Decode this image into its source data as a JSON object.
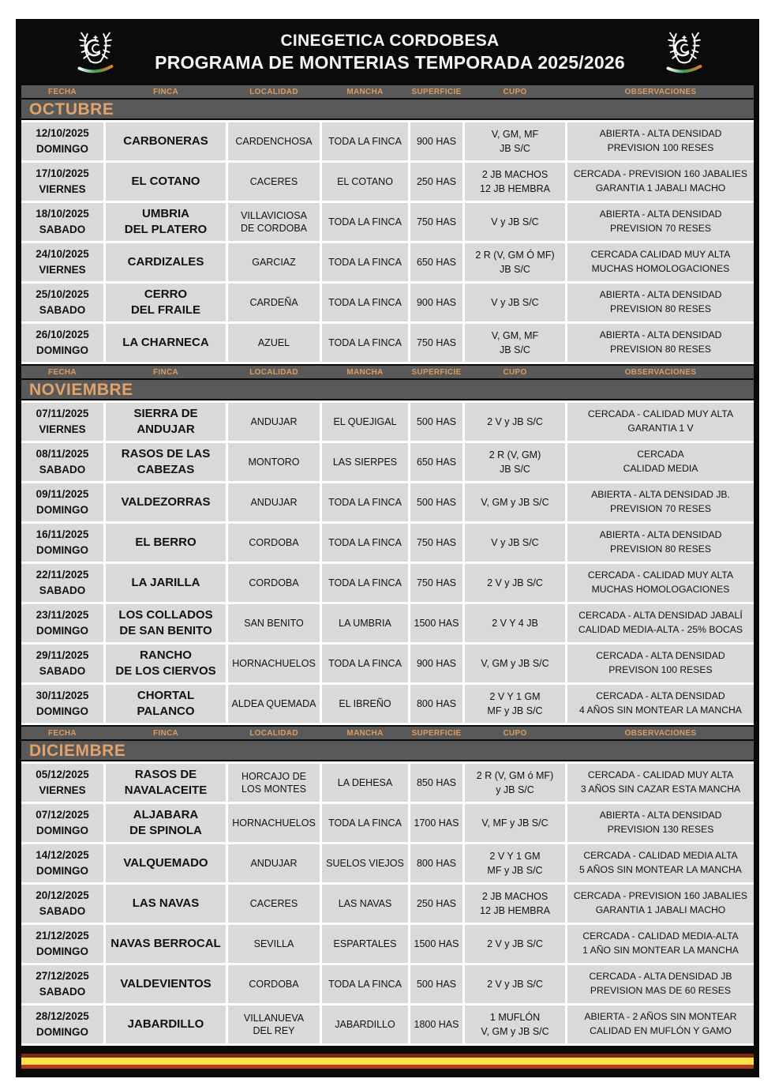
{
  "header": {
    "org": "CINEGETICA CORDOBESA",
    "title": "PROGRAMA DE MONTERIAS TEMPORADA 2025/2026"
  },
  "columns": [
    "FECHA",
    "FINCA",
    "LOCALIDAD",
    "MANCHA",
    "SUPERFICIE",
    "CUPO",
    "OBSERVACIONES"
  ],
  "colors": {
    "accent_orange": "#dd9b61",
    "band_gray": "#595959",
    "cell_gray": "#d9d9d9",
    "background_black": "#0b0b0b",
    "flag_stripes": [
      "#7e2a12",
      "#ffe14e",
      "#b23b1e"
    ],
    "logo_swoosh": [
      "#ffffff",
      "#3f9d4e",
      "#e07b2a"
    ]
  },
  "sections": [
    {
      "month": "OCTUBRE",
      "rows": [
        {
          "fecha": "12/10/2025",
          "dia": "DOMINGO",
          "finca": [
            "CARBONERAS"
          ],
          "localidad": [
            "CARDENCHOSA"
          ],
          "mancha": "TODA LA FINCA",
          "superficie": "900 HAS",
          "cupo": [
            "V, GM, MF",
            "JB S/C"
          ],
          "observaciones": [
            "ABIERTA - ALTA DENSIDAD",
            "PREVISION 100 RESES"
          ]
        },
        {
          "fecha": "17/10/2025",
          "dia": "VIERNES",
          "finca": [
            "EL COTANO"
          ],
          "localidad": [
            "CACERES"
          ],
          "mancha": "EL COTANO",
          "superficie": "250 HAS",
          "cupo": [
            "2 JB MACHOS",
            "12 JB HEMBRA"
          ],
          "observaciones": [
            "CERCADA - PREVISION 160 JABALIES",
            "GARANTIA 1 JABALI MACHO"
          ]
        },
        {
          "fecha": "18/10/2025",
          "dia": "SABADO",
          "finca": [
            "UMBRIA",
            "DEL PLATERO"
          ],
          "localidad": [
            "VILLAVICIOSA",
            "DE CORDOBA"
          ],
          "mancha": "TODA LA FINCA",
          "superficie": "750 HAS",
          "cupo": [
            "V y JB S/C"
          ],
          "observaciones": [
            "ABIERTA - ALTA DENSIDAD",
            "PREVISION 70 RESES"
          ]
        },
        {
          "fecha": "24/10/2025",
          "dia": "VIERNES",
          "finca": [
            "CARDIZALES"
          ],
          "localidad": [
            "GARCIAZ"
          ],
          "mancha": "TODA LA FINCA",
          "superficie": "650 HAS",
          "cupo": [
            "2 R (V, GM Ó MF)",
            "JB S/C"
          ],
          "observaciones": [
            "CERCADA CALIDAD MUY ALTA",
            "MUCHAS HOMOLOGACIONES"
          ]
        },
        {
          "fecha": "25/10/2025",
          "dia": "SABADO",
          "finca": [
            "CERRO",
            "DEL FRAILE"
          ],
          "localidad": [
            "CARDEÑA"
          ],
          "mancha": "TODA LA FINCA",
          "superficie": "900 HAS",
          "cupo": [
            "V y JB S/C"
          ],
          "observaciones": [
            "ABIERTA - ALTA DENSIDAD",
            "PREVISION  80 RESES"
          ]
        },
        {
          "fecha": "26/10/2025",
          "dia": "DOMINGO",
          "finca": [
            "LA CHARNECA"
          ],
          "localidad": [
            "AZUEL"
          ],
          "mancha": "TODA LA FINCA",
          "superficie": "750 HAS",
          "cupo": [
            "V, GM, MF",
            "JB S/C"
          ],
          "observaciones": [
            "ABIERTA - ALTA DENSIDAD",
            "PREVISION  80 RESES"
          ]
        }
      ]
    },
    {
      "month": "NOVIEMBRE",
      "rows": [
        {
          "fecha": "07/11/2025",
          "dia": "VIERNES",
          "finca": [
            "SIERRA DE",
            "ANDUJAR"
          ],
          "localidad": [
            "ANDUJAR"
          ],
          "mancha": "EL QUEJIGAL",
          "superficie": "500 HAS",
          "cupo": [
            "2 V y JB S/C"
          ],
          "observaciones": [
            "CERCADA - CALIDAD MUY ALTA",
            "GARANTIA 1 V"
          ]
        },
        {
          "fecha": "08/11/2025",
          "dia": "SABADO",
          "finca": [
            "RASOS DE LAS",
            "CABEZAS"
          ],
          "localidad": [
            "MONTORO"
          ],
          "mancha": "LAS SIERPES",
          "superficie": "650 HAS",
          "cupo": [
            "2 R (V, GM)",
            "JB S/C"
          ],
          "observaciones": [
            "CERCADA",
            "CALIDAD MEDIA"
          ]
        },
        {
          "fecha": "09/11/2025",
          "dia": "DOMINGO",
          "finca": [
            "VALDEZORRAS"
          ],
          "localidad": [
            "ANDUJAR"
          ],
          "mancha": "TODA LA FINCA",
          "superficie": "500 HAS",
          "cupo": [
            "V, GM y JB S/C"
          ],
          "observaciones": [
            "ABIERTA - ALTA DENSIDAD JB.",
            "PREVISION  70 RESES"
          ]
        },
        {
          "fecha": "16/11/2025",
          "dia": "DOMINGO",
          "finca": [
            "EL BERRO"
          ],
          "localidad": [
            "CORDOBA"
          ],
          "mancha": "TODA LA FINCA",
          "superficie": "750 HAS",
          "cupo": [
            "V y JB S/C"
          ],
          "observaciones": [
            "ABIERTA - ALTA DENSIDAD",
            "PREVISION  80 RESES"
          ]
        },
        {
          "fecha": "22/11/2025",
          "dia": "SABADO",
          "finca": [
            "LA JARILLA"
          ],
          "localidad": [
            "CORDOBA"
          ],
          "mancha": "TODA LA FINCA",
          "superficie": "750 HAS",
          "cupo": [
            "2 V y JB S/C"
          ],
          "observaciones": [
            "CERCADA - CALIDAD MUY ALTA",
            "MUCHAS HOMOLOGACIONES"
          ]
        },
        {
          "fecha": "23/11/2025",
          "dia": "DOMINGO",
          "finca": [
            "LOS COLLADOS",
            "DE SAN BENITO"
          ],
          "localidad": [
            "SAN BENITO"
          ],
          "mancha": "LA UMBRIA",
          "superficie": "1500 HAS",
          "cupo": [
            "2 V  Y  4 JB"
          ],
          "observaciones": [
            "CERCADA - ALTA DENSIDAD JABALÍ",
            "CALIDAD MEDIA-ALTA - 25% BOCAS"
          ]
        },
        {
          "fecha": "29/11/2025",
          "dia": "SABADO",
          "finca": [
            "RANCHO",
            "DE LOS CIERVOS"
          ],
          "localidad": [
            "HORNACHUELOS"
          ],
          "mancha": "TODA LA FINCA",
          "superficie": "900 HAS",
          "cupo": [
            "V, GM y JB S/C"
          ],
          "observaciones": [
            "CERCADA - ALTA DENSIDAD",
            "PREVISON 100 RESES"
          ]
        },
        {
          "fecha": "30/11/2025",
          "dia": "DOMINGO",
          "finca": [
            "CHORTAL",
            "PALANCO"
          ],
          "localidad": [
            "ALDEA QUEMADA"
          ],
          "mancha": "EL IBREÑO",
          "superficie": "800 HAS",
          "cupo": [
            "2 V  Y  1 GM",
            "MF y JB S/C"
          ],
          "observaciones": [
            "CERCADA  - ALTA DENSIDAD",
            "4 AÑOS SIN MONTEAR LA MANCHA"
          ]
        }
      ]
    },
    {
      "month": "DICIEMBRE",
      "rows": [
        {
          "fecha": "05/12/2025",
          "dia": "VIERNES",
          "finca": [
            "RASOS DE",
            "NAVALACEITE"
          ],
          "localidad": [
            "HORCAJO DE",
            "LOS MONTES"
          ],
          "mancha": "LA DEHESA",
          "superficie": "850 HAS",
          "cupo": [
            "2 R (V, GM ó MF)",
            "y JB S/C"
          ],
          "observaciones": [
            "CERCADA - CALIDAD MUY ALTA",
            "3 AÑOS SIN CAZAR ESTA MANCHA"
          ]
        },
        {
          "fecha": "07/12/2025",
          "dia": "DOMINGO",
          "finca": [
            "ALJABARA",
            "DE SPINOLA"
          ],
          "localidad": [
            "HORNACHUELOS"
          ],
          "mancha": "TODA LA FINCA",
          "superficie": "1700 HAS",
          "cupo": [
            "V, MF y JB S/C"
          ],
          "observaciones": [
            "ABIERTA - ALTA DENSIDAD",
            "PREVISION  130 RESES"
          ]
        },
        {
          "fecha": "14/12/2025",
          "dia": "DOMINGO",
          "finca": [
            "VALQUEMADO"
          ],
          "localidad": [
            "ANDUJAR"
          ],
          "mancha": "SUELOS VIEJOS",
          "superficie": "800 HAS",
          "cupo": [
            "2 V  Y  1 GM",
            "MF y JB S/C"
          ],
          "observaciones": [
            "CERCADA -  CALIDAD MEDIA ALTA",
            "5 AÑOS SIN MONTEAR LA MANCHA"
          ]
        },
        {
          "fecha": "20/12/2025",
          "dia": "SABADO",
          "finca": [
            "LAS NAVAS"
          ],
          "localidad": [
            "CACERES"
          ],
          "mancha": "LAS NAVAS",
          "superficie": "250 HAS",
          "cupo": [
            "2 JB MACHOS",
            "12 JB HEMBRA"
          ],
          "observaciones": [
            "CERCADA - PREVISION 160 JABALIES",
            "GARANTIA 1 JABALI MACHO"
          ]
        },
        {
          "fecha": "21/12/2025",
          "dia": "DOMINGO",
          "finca": [
            "NAVAS BERROCAL"
          ],
          "localidad": [
            "SEVILLA"
          ],
          "mancha": "ESPARTALES",
          "superficie": "1500 HAS",
          "cupo": [
            "2 V y JB S/C"
          ],
          "observaciones": [
            "CERCADA - CALIDAD MEDIA-ALTA",
            "1 AÑO SIN MONTEAR LA MANCHA"
          ]
        },
        {
          "fecha": "27/12/2025",
          "dia": "SABADO",
          "finca": [
            "VALDEVIENTOS"
          ],
          "localidad": [
            "CORDOBA"
          ],
          "mancha": "TODA LA FINCA",
          "superficie": "500 HAS",
          "cupo": [
            "2 V y JB S/C"
          ],
          "observaciones": [
            "CERCADA - ALTA DENSIDAD JB",
            "PREVISION MAS DE 60 RESES"
          ]
        },
        {
          "fecha": "28/12/2025",
          "dia": "DOMINGO",
          "finca": [
            "JABARDILLO"
          ],
          "localidad": [
            "VILLANUEVA",
            "DEL REY"
          ],
          "mancha": "JABARDILLO",
          "superficie": "1800 HAS",
          "cupo": [
            "1  MUFLÓN",
            "V,  GM y JB S/C"
          ],
          "observaciones": [
            "ABIERTA - 2 AÑOS SIN MONTEAR",
            "CALIDAD EN MUFLÓN Y GAMO"
          ]
        }
      ]
    }
  ]
}
